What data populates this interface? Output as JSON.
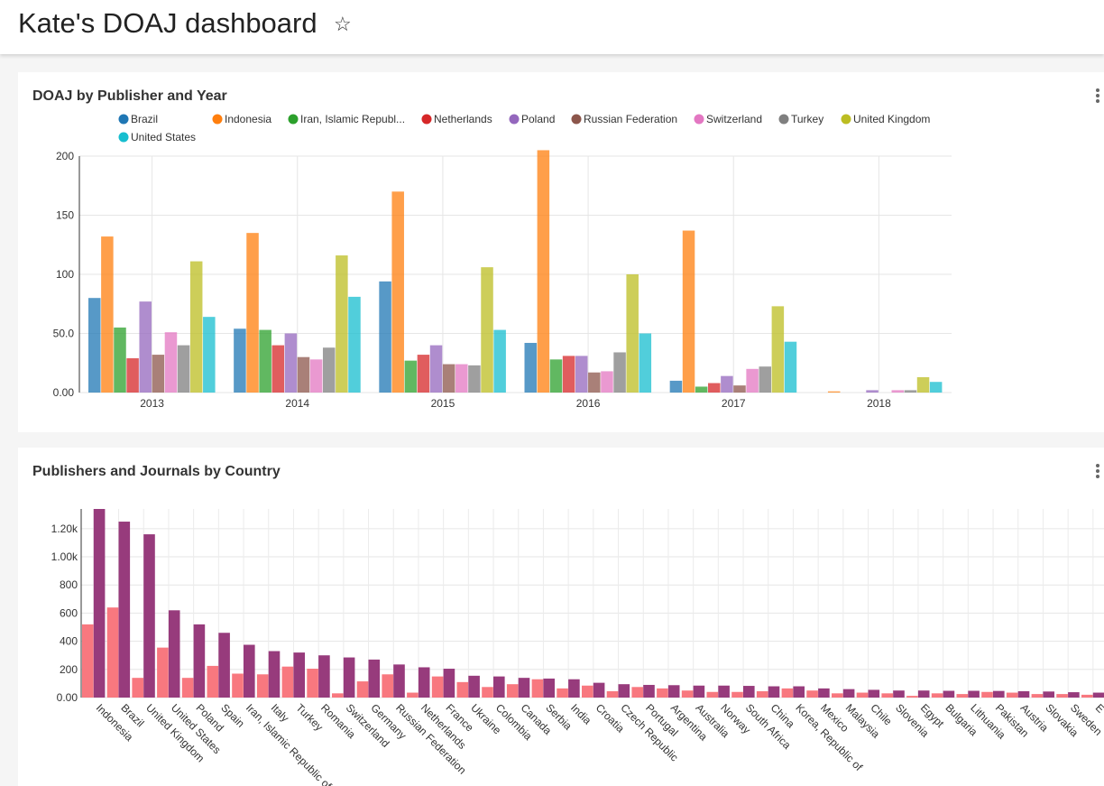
{
  "dashboard": {
    "title": "Kate's DOAJ dashboard",
    "star_icon": "☆"
  },
  "panels": [
    {
      "title": "DOAJ by Publisher and Year"
    },
    {
      "title": "Publishers and Journals by Country"
    }
  ],
  "chart_data": [
    {
      "type": "bar",
      "title": "DOAJ by Publisher and Year",
      "categories": [
        "2013",
        "2014",
        "2015",
        "2016",
        "2017",
        "2018"
      ],
      "ylim": [
        0,
        200
      ],
      "yticks": [
        0,
        50,
        100,
        150,
        200
      ],
      "ytick_labels": [
        "0.00",
        "50.0",
        "100",
        "150",
        "200"
      ],
      "grid": true,
      "legend_position": "top",
      "series": [
        {
          "name": "Brazil",
          "color": "#1f77b4",
          "values": [
            80,
            54,
            94,
            42,
            10,
            0
          ]
        },
        {
          "name": "Indonesia",
          "color": "#ff7f0e",
          "values": [
            132,
            135,
            170,
            205,
            137,
            1
          ]
        },
        {
          "name": "Iran, Islamic Republ...",
          "color": "#2ca02c",
          "values": [
            55,
            53,
            27,
            28,
            5,
            0
          ]
        },
        {
          "name": "Netherlands",
          "color": "#d62728",
          "values": [
            29,
            40,
            32,
            31,
            8,
            0
          ]
        },
        {
          "name": "Poland",
          "color": "#9467bd",
          "values": [
            77,
            50,
            40,
            31,
            14,
            2
          ]
        },
        {
          "name": "Russian Federation",
          "color": "#8c564b",
          "values": [
            32,
            30,
            24,
            17,
            6,
            0
          ]
        },
        {
          "name": "Switzerland",
          "color": "#e377c2",
          "values": [
            51,
            28,
            24,
            18,
            20,
            2
          ]
        },
        {
          "name": "Turkey",
          "color": "#7f7f7f",
          "values": [
            40,
            38,
            23,
            34,
            22,
            2
          ]
        },
        {
          "name": "United Kingdom",
          "color": "#bcbd22",
          "values": [
            111,
            116,
            106,
            100,
            73,
            13
          ]
        },
        {
          "name": "United States",
          "color": "#17becf",
          "values": [
            64,
            81,
            53,
            50,
            43,
            9
          ]
        }
      ]
    },
    {
      "type": "bar",
      "title": "Publishers and Journals by Country",
      "categories": [
        "Indonesia",
        "Brazil",
        "United Kingdom",
        "United States",
        "Poland",
        "Spain",
        "Iran, Islamic Republic of",
        "Italy",
        "Turkey",
        "Romania",
        "Switzerland",
        "Germany",
        "Russian Federation",
        "Netherlands",
        "France",
        "Ukraine",
        "Colombia",
        "Canada",
        "Serbia",
        "India",
        "Croatia",
        "Czech Republic",
        "Portugal",
        "Argentina",
        "Australia",
        "Norway",
        "South Africa",
        "China",
        "Korea, Republic of",
        "Mexico",
        "Malaysia",
        "Chile",
        "Slovenia",
        "Egypt",
        "Bulgaria",
        "Lithuania",
        "Pakistan",
        "Austria",
        "Slovakia",
        "Sweden",
        "E"
      ],
      "ylim": [
        0,
        1340
      ],
      "yticks": [
        0,
        200,
        400,
        600,
        800,
        1000,
        1200
      ],
      "ytick_labels": [
        "0.00",
        "200",
        "400",
        "600",
        "800",
        "1.00k",
        "1.20k"
      ],
      "grid": true,
      "series": [
        {
          "color": "#f8787f",
          "values": [
            520,
            640,
            140,
            355,
            140,
            225,
            170,
            165,
            220,
            205,
            30,
            115,
            165,
            35,
            150,
            110,
            75,
            95,
            130,
            65,
            85,
            45,
            75,
            65,
            50,
            40,
            40,
            45,
            65,
            50,
            30,
            35,
            30,
            12,
            30,
            25,
            40,
            35,
            25,
            25,
            20
          ]
        },
        {
          "color": "#973b7c",
          "values": [
            1340,
            1250,
            1160,
            620,
            520,
            460,
            375,
            330,
            320,
            300,
            285,
            270,
            235,
            215,
            205,
            155,
            150,
            140,
            135,
            130,
            105,
            95,
            90,
            88,
            85,
            85,
            83,
            80,
            80,
            65,
            60,
            55,
            50,
            50,
            48,
            48,
            47,
            45,
            43,
            38,
            35
          ]
        }
      ]
    }
  ]
}
